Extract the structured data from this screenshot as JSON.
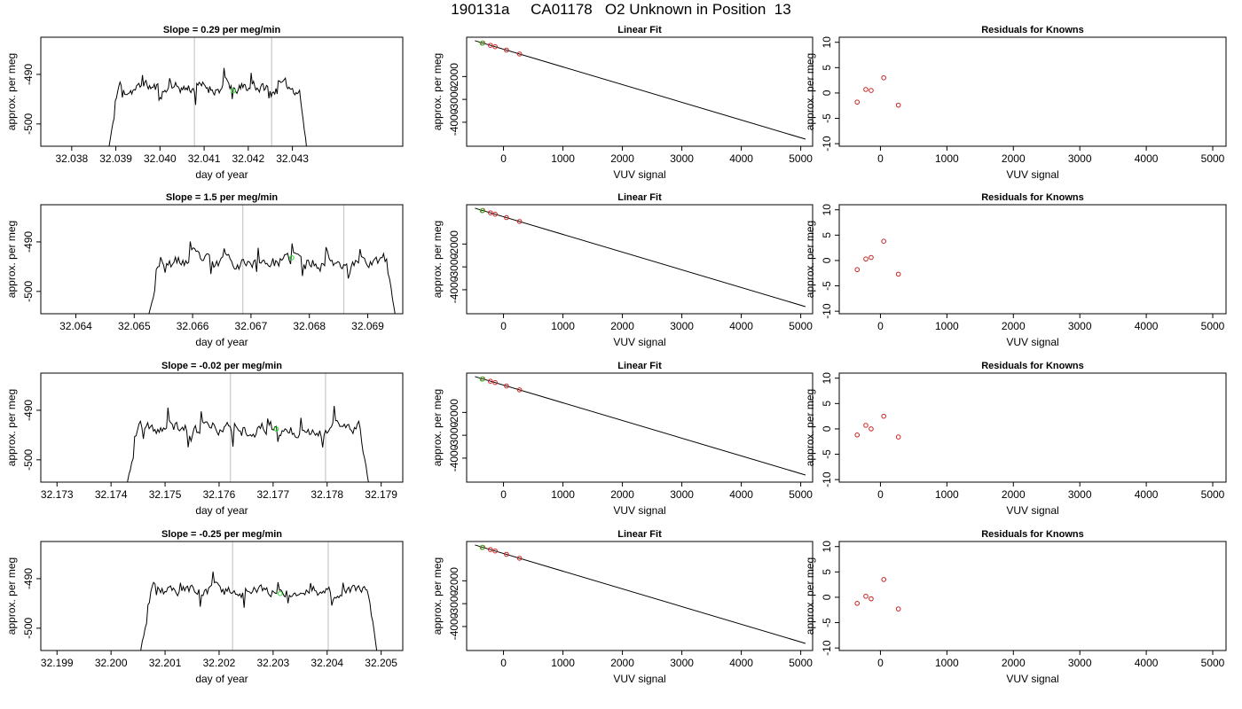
{
  "page_title": "190131a     CA01178   O2 Unknown in Position  13",
  "chart_data": [
    {
      "type": "line",
      "title": "Slope =  0.29  per meg/min",
      "xlabel": "day of year",
      "ylabel": "approx. per meg",
      "xlim": [
        32.0373,
        32.0455
      ],
      "ylim": [
        -504.5,
        -482.5
      ],
      "xticks": [
        "32.038",
        "32.039",
        "32.040",
        "32.041",
        "32.042",
        "32.043"
      ],
      "yticks": [
        "-490",
        "-500"
      ],
      "vlines": [
        32.04078,
        32.04253
      ],
      "green_point": [
        32.04166,
        -493.3
      ],
      "t_start": 32.0388,
      "t_end": 32.04335,
      "seed": 11,
      "mean": -492.8,
      "amp": 1.8
    },
    {
      "type": "scatter",
      "title": "Linear Fit",
      "xlabel": "VUV signal",
      "ylabel": "approx. per meg",
      "xlim": [
        -620,
        5200
      ],
      "ylim": [
        -5050,
        -280
      ],
      "xticks": [
        "0",
        "1000",
        "2000",
        "3000",
        "4000",
        "5000"
      ],
      "yticks": [
        "-2000",
        "-3000",
        "-4000"
      ],
      "line": [
        [
          -480,
          -433
        ],
        [
          5080,
          -4739
        ]
      ],
      "known_points": [
        [
          -350,
          -533
        ],
        [
          -220,
          -634
        ],
        [
          -140,
          -695
        ],
        [
          50,
          -842
        ],
        [
          270,
          -1012
        ]
      ],
      "green_point": [
        -360,
        -541
      ]
    },
    {
      "type": "scatter",
      "title": "Residuals for Knowns",
      "xlabel": "VUV signal",
      "ylabel": "approx. per meg",
      "xlim": [
        -620,
        5200
      ],
      "ylim": [
        -10.5,
        11
      ],
      "xticks": [
        "0",
        "1000",
        "2000",
        "3000",
        "4000",
        "5000"
      ],
      "yticks": [
        "10",
        "5",
        "0",
        "-5",
        "-10"
      ],
      "points": [
        [
          -350,
          -1.8
        ],
        [
          -220,
          0.7
        ],
        [
          -140,
          0.5
        ],
        [
          50,
          3.0
        ],
        [
          270,
          -2.4
        ]
      ]
    },
    {
      "type": "line",
      "title": "Slope =  1.5  per meg/min",
      "xlabel": "day of year",
      "ylabel": "approx. per meg",
      "xlim": [
        32.0634,
        32.0696
      ],
      "ylim": [
        -504.5,
        -482.5
      ],
      "xticks": [
        "32.064",
        "32.065",
        "32.066",
        "32.067",
        "32.068",
        "32.069"
      ],
      "yticks": [
        "-490",
        "-500"
      ],
      "vlines": [
        32.06686,
        32.06859
      ],
      "green_point": [
        32.0677,
        -493.2
      ],
      "t_start": 32.0652,
      "t_end": 32.0695,
      "seed": 23,
      "mean": -494.0,
      "amp": 2.0
    },
    {
      "type": "scatter",
      "title": "Linear Fit",
      "xlabel": "VUV signal",
      "ylabel": "approx. per meg",
      "xlim": [
        -620,
        5200
      ],
      "ylim": [
        -5050,
        -280
      ],
      "xticks": [
        "0",
        "1000",
        "2000",
        "3000",
        "4000",
        "5000"
      ],
      "yticks": [
        "-2000",
        "-3000",
        "-4000"
      ],
      "line": [
        [
          -480,
          -433
        ],
        [
          5080,
          -4739
        ]
      ],
      "known_points": [
        [
          -350,
          -533
        ],
        [
          -220,
          -634
        ],
        [
          -140,
          -695
        ],
        [
          50,
          -842
        ],
        [
          270,
          -1012
        ]
      ],
      "green_point": [
        -360,
        -541
      ]
    },
    {
      "type": "scatter",
      "title": "Residuals for Knowns",
      "xlabel": "VUV signal",
      "ylabel": "approx. per meg",
      "xlim": [
        -620,
        5200
      ],
      "ylim": [
        -10.5,
        11
      ],
      "xticks": [
        "0",
        "1000",
        "2000",
        "3000",
        "4000",
        "5000"
      ],
      "yticks": [
        "10",
        "5",
        "0",
        "-5",
        "-10"
      ],
      "points": [
        [
          -350,
          -1.8
        ],
        [
          -220,
          0.3
        ],
        [
          -140,
          0.6
        ],
        [
          50,
          3.8
        ],
        [
          270,
          -2.7
        ]
      ]
    },
    {
      "type": "line",
      "title": "Slope =  -0.02  per meg/min",
      "xlabel": "day of year",
      "ylabel": "approx. per meg",
      "xlim": [
        32.1727,
        32.1794
      ],
      "ylim": [
        -504.5,
        -482.5
      ],
      "xticks": [
        "32.173",
        "32.174",
        "32.175",
        "32.176",
        "32.177",
        "32.178",
        "32.179"
      ],
      "yticks": [
        "-490",
        "-500"
      ],
      "vlines": [
        32.17621,
        32.17797
      ],
      "green_point": [
        32.17706,
        -493.8
      ],
      "t_start": 32.17425,
      "t_end": 32.1788,
      "seed": 37,
      "mean": -493.8,
      "amp": 2.0
    },
    {
      "type": "scatter",
      "title": "Linear Fit",
      "xlabel": "VUV signal",
      "ylabel": "approx. per meg",
      "xlim": [
        -620,
        5200
      ],
      "ylim": [
        -5050,
        -280
      ],
      "xticks": [
        "0",
        "1000",
        "2000",
        "3000",
        "4000",
        "5000"
      ],
      "yticks": [
        "-2000",
        "-3000",
        "-4000"
      ],
      "line": [
        [
          -480,
          -433
        ],
        [
          5080,
          -4739
        ]
      ],
      "known_points": [
        [
          -350,
          -533
        ],
        [
          -220,
          -634
        ],
        [
          -140,
          -695
        ],
        [
          50,
          -842
        ],
        [
          270,
          -1012
        ]
      ],
      "green_point": [
        -360,
        -541
      ]
    },
    {
      "type": "scatter",
      "title": "Residuals for Knowns",
      "xlabel": "VUV signal",
      "ylabel": "approx. per meg",
      "xlim": [
        -620,
        5200
      ],
      "ylim": [
        -10.5,
        11
      ],
      "xticks": [
        "0",
        "1000",
        "2000",
        "3000",
        "4000",
        "5000"
      ],
      "yticks": [
        "10",
        "5",
        "0",
        "-5",
        "-10"
      ],
      "points": [
        [
          -350,
          -1.2
        ],
        [
          -220,
          0.7
        ],
        [
          -140,
          0.0
        ],
        [
          50,
          2.5
        ],
        [
          270,
          -1.6
        ]
      ]
    },
    {
      "type": "line",
      "title": "Slope =  -0.25  per meg/min",
      "xlabel": "day of year",
      "ylabel": "approx. per meg",
      "xlim": [
        32.1987,
        32.2054
      ],
      "ylim": [
        -504.5,
        -482.5
      ],
      "xticks": [
        "32.199",
        "32.200",
        "32.201",
        "32.202",
        "32.203",
        "32.204",
        "32.205"
      ],
      "yticks": [
        "-490",
        "-500"
      ],
      "vlines": [
        32.20225,
        32.20402
      ],
      "green_point": [
        32.20313,
        -493.0
      ],
      "t_start": 32.2005,
      "t_end": 32.20495,
      "seed": 53,
      "mean": -492.5,
      "amp": 1.6
    },
    {
      "type": "scatter",
      "title": "Linear Fit",
      "xlabel": "VUV signal",
      "ylabel": "approx. per meg",
      "xlim": [
        -620,
        5200
      ],
      "ylim": [
        -5050,
        -280
      ],
      "xticks": [
        "0",
        "1000",
        "2000",
        "3000",
        "4000",
        "5000"
      ],
      "yticks": [
        "-2000",
        "-3000",
        "-4000"
      ],
      "line": [
        [
          -480,
          -433
        ],
        [
          5080,
          -4739
        ]
      ],
      "known_points": [
        [
          -350,
          -533
        ],
        [
          -220,
          -634
        ],
        [
          -140,
          -695
        ],
        [
          50,
          -842
        ],
        [
          270,
          -1012
        ]
      ],
      "green_point": [
        -360,
        -541
      ]
    },
    {
      "type": "scatter",
      "title": "Residuals for Knowns",
      "xlabel": "VUV signal",
      "ylabel": "approx. per meg",
      "xlim": [
        -620,
        5200
      ],
      "ylim": [
        -10.5,
        11
      ],
      "xticks": [
        "0",
        "1000",
        "2000",
        "3000",
        "4000",
        "5000"
      ],
      "yticks": [
        "10",
        "5",
        "0",
        "-5",
        "-10"
      ],
      "points": [
        [
          -350,
          -1.2
        ],
        [
          -220,
          0.2
        ],
        [
          -140,
          -0.3
        ],
        [
          50,
          3.5
        ],
        [
          270,
          -2.3
        ]
      ]
    }
  ]
}
